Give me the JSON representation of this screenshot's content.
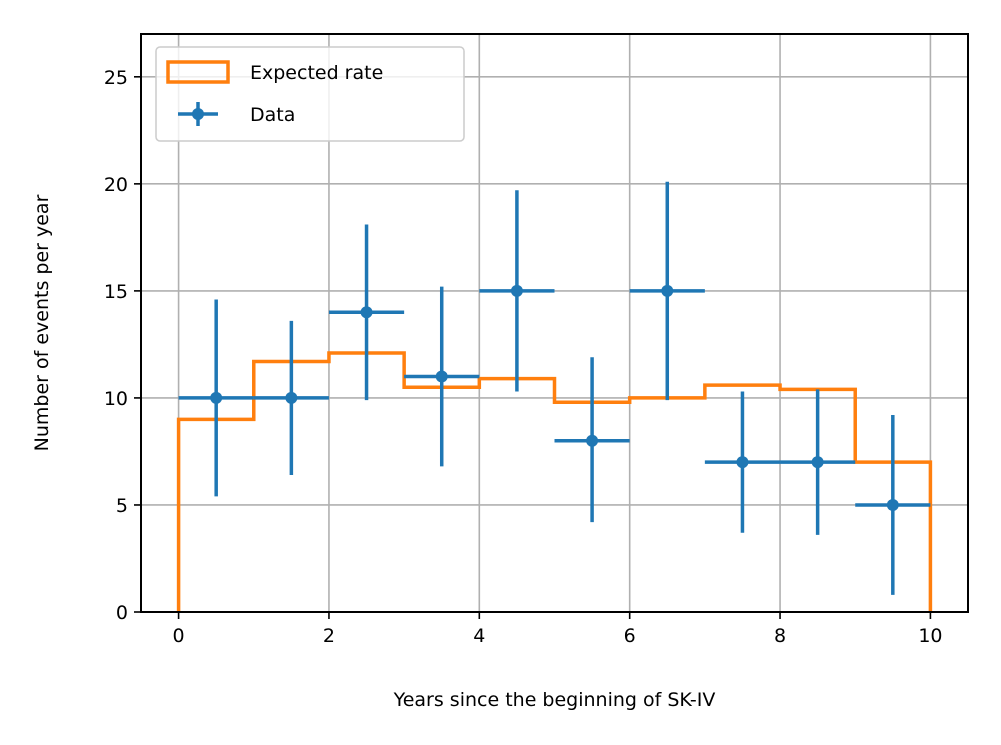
{
  "chart_data": {
    "type": "histogram-with-errorbars",
    "title": "",
    "xlabel": "Years since the beginning of SK-IV",
    "ylabel": "Number of events per year",
    "xlim": [
      -0.5,
      10.5
    ],
    "ylim": [
      0,
      27
    ],
    "x_ticks": [
      0,
      2,
      4,
      6,
      8,
      10
    ],
    "y_ticks": [
      0,
      5,
      10,
      15,
      20,
      25
    ],
    "grid": true,
    "legend_position": "top-left",
    "colors": {
      "expected": "#ff7f0e",
      "data": "#1f77b4",
      "grid": "#b0b0b0"
    },
    "series": [
      {
        "name": "Expected rate",
        "kind": "step",
        "bin_edges": [
          0,
          1,
          2,
          3,
          4,
          5,
          6,
          7,
          8,
          9,
          10
        ],
        "values": [
          9.0,
          11.7,
          12.1,
          10.5,
          10.9,
          9.8,
          10.0,
          10.6,
          10.4,
          7.0
        ]
      },
      {
        "name": "Data",
        "kind": "errorbar",
        "x": [
          0.5,
          1.5,
          2.5,
          3.5,
          4.5,
          5.5,
          6.5,
          7.5,
          8.5,
          9.5
        ],
        "x_err": 0.5,
        "y": [
          10,
          10,
          14,
          11,
          15,
          8,
          15,
          7,
          7,
          5
        ],
        "y_low": [
          5.4,
          6.4,
          9.9,
          6.8,
          10.3,
          4.2,
          9.9,
          3.7,
          3.6,
          0.8
        ],
        "y_high": [
          14.6,
          13.6,
          18.1,
          15.2,
          19.7,
          11.9,
          20.1,
          10.3,
          10.4,
          9.2
        ]
      }
    ]
  }
}
